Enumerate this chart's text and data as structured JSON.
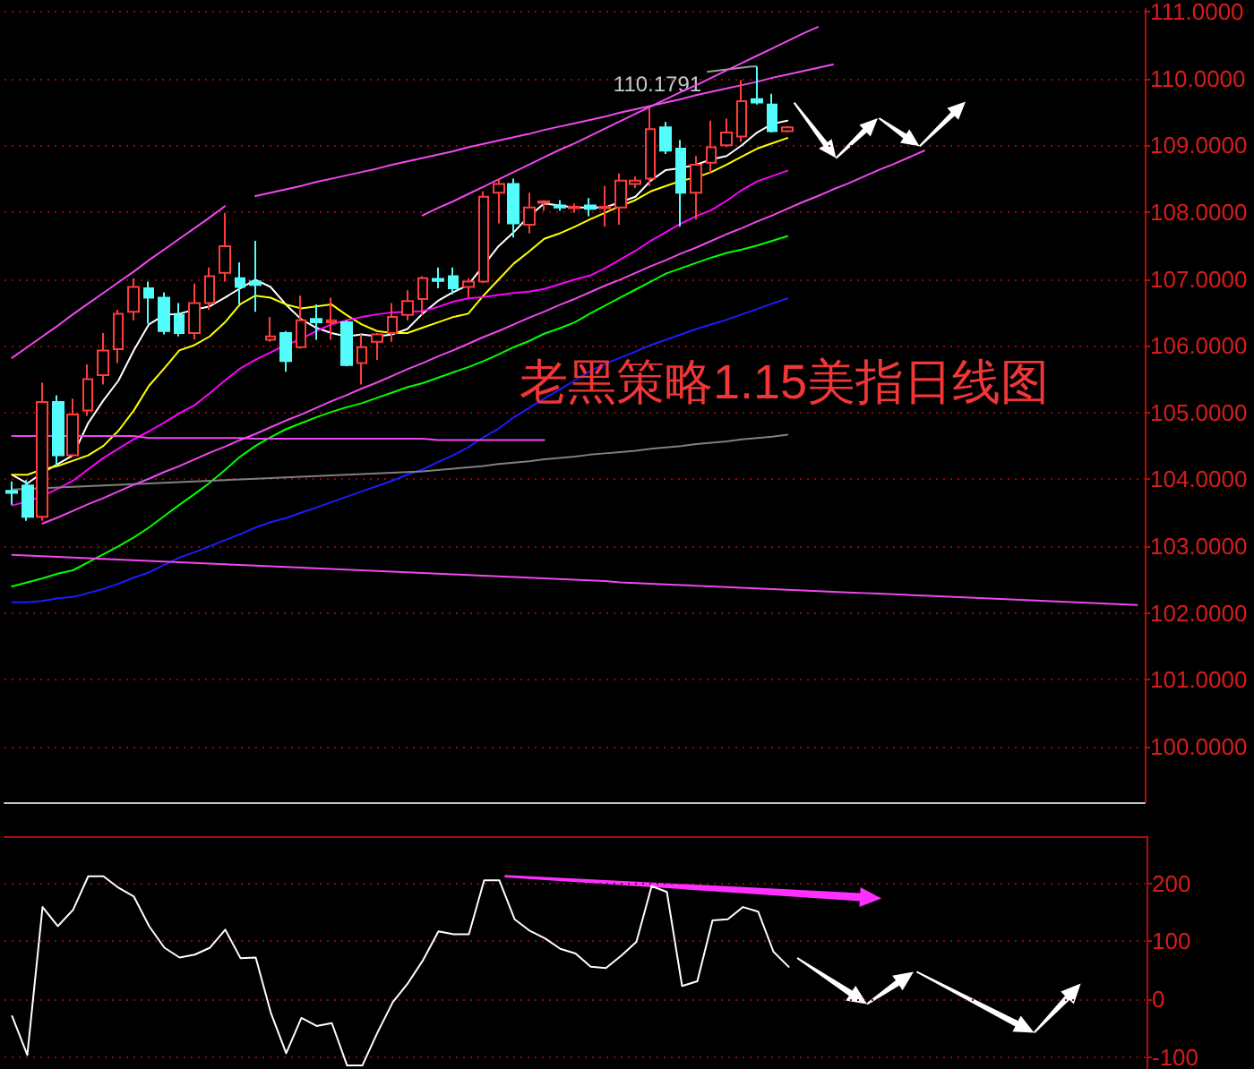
{
  "chart_data": [
    {
      "type": "candlestick",
      "title": "老黑策略1.15美指日线图",
      "categories": [
        null,
        null,
        null,
        null,
        null,
        null,
        null,
        null,
        null,
        null,
        null,
        null,
        null,
        null,
        null,
        null,
        null,
        null,
        null,
        null,
        null,
        null,
        null,
        null,
        null,
        null,
        null,
        null,
        null,
        null,
        null,
        null,
        null,
        null,
        null,
        null,
        null,
        null,
        null,
        null,
        null,
        null,
        null,
        null,
        null,
        null,
        null,
        null,
        null,
        null,
        null,
        null,
        null,
        null,
        null,
        null,
        null,
        null,
        null,
        null,
        null,
        null,
        null,
        null,
        null,
        null,
        null,
        null,
        null,
        null,
        null,
        null,
        null,
        null,
        null
      ],
      "ohlc": [
        [
          103.83,
          103.97,
          103.62,
          103.8
        ],
        [
          103.91,
          103.99,
          103.38,
          103.44
        ],
        [
          103.44,
          105.45,
          103.38,
          105.16
        ],
        [
          105.16,
          105.26,
          104.2,
          104.36
        ],
        [
          104.36,
          105.21,
          104.34,
          104.97
        ],
        [
          105.03,
          105.72,
          104.95,
          105.5
        ],
        [
          105.56,
          106.19,
          105.42,
          105.93
        ],
        [
          105.95,
          106.54,
          105.74,
          106.48
        ],
        [
          106.51,
          107.01,
          106.38,
          106.88
        ],
        [
          106.86,
          106.96,
          106.33,
          106.72
        ],
        [
          106.72,
          106.8,
          106.17,
          106.22
        ],
        [
          106.46,
          106.64,
          106.14,
          106.19
        ],
        [
          106.19,
          106.93,
          106.09,
          106.64
        ],
        [
          106.64,
          107.17,
          106.54,
          107.04
        ],
        [
          107.09,
          107.99,
          106.96,
          107.49
        ],
        [
          107.01,
          107.25,
          106.62,
          106.88
        ],
        [
          106.96,
          107.57,
          106.51,
          106.91
        ],
        [
          106.09,
          106.43,
          106.06,
          106.14
        ],
        [
          106.19,
          106.22,
          105.61,
          105.77
        ],
        [
          105.98,
          106.75,
          105.96,
          106.38
        ],
        [
          106.4,
          106.62,
          106.09,
          106.35
        ],
        [
          106.35,
          106.72,
          106.09,
          106.38
        ],
        [
          106.35,
          106.38,
          105.69,
          105.71
        ],
        [
          105.74,
          106.17,
          105.42,
          105.98
        ],
        [
          106.06,
          106.19,
          105.79,
          106.17
        ],
        [
          106.19,
          106.64,
          106.06,
          106.43
        ],
        [
          106.46,
          106.83,
          106.38,
          106.67
        ],
        [
          106.7,
          107.04,
          106.46,
          107.01
        ],
        [
          107.0,
          107.17,
          106.86,
          106.97
        ],
        [
          107.04,
          107.17,
          106.77,
          106.86
        ],
        [
          106.88,
          107.01,
          106.72,
          106.96
        ],
        [
          106.96,
          108.31,
          106.94,
          108.23
        ],
        [
          108.29,
          108.5,
          107.83,
          108.42
        ],
        [
          108.42,
          108.5,
          107.62,
          107.83
        ],
        [
          107.81,
          108.29,
          107.68,
          108.07
        ],
        [
          108.14,
          108.18,
          108.02,
          108.16
        ],
        [
          108.1,
          108.18,
          108.02,
          108.07
        ],
        [
          108.06,
          108.13,
          107.99,
          108.08
        ],
        [
          108.1,
          108.21,
          107.94,
          108.05
        ],
        [
          108.06,
          108.39,
          107.78,
          108.08
        ],
        [
          108.07,
          108.58,
          107.81,
          108.47
        ],
        [
          108.42,
          108.53,
          108.36,
          108.47
        ],
        [
          108.5,
          109.56,
          108.39,
          109.24
        ],
        [
          109.27,
          109.35,
          108.87,
          108.92
        ],
        [
          108.95,
          109.08,
          107.78,
          108.29
        ],
        [
          108.29,
          108.84,
          107.89,
          108.71
        ],
        [
          108.74,
          109.37,
          108.58,
          108.97
        ],
        [
          109.0,
          109.4,
          108.97,
          109.19
        ],
        [
          109.13,
          109.98,
          109.05,
          109.66
        ],
        [
          109.69,
          110.1791,
          109.61,
          109.64
        ],
        [
          109.61,
          109.77,
          109.19,
          109.21
        ],
        [
          109.21,
          109.29,
          109.19,
          109.27
        ],
        null,
        null,
        null,
        null,
        null,
        null,
        null,
        null,
        null,
        null,
        null,
        null,
        null,
        null,
        null,
        null,
        null,
        null,
        null,
        null,
        null,
        null,
        null
      ],
      "colors": [
        "#54fcfc",
        "#54fcfc",
        "#ff3c3c",
        "#54fcfc",
        "#ff3c3c",
        "#ff3c3c",
        "#ff3c3c",
        "#ff3c3c",
        "#ff3c3c",
        "#54fcfc",
        "#54fcfc",
        "#54fcfc",
        "#ff3c3c",
        "#ff3c3c",
        "#ff3c3c",
        "#54fcfc",
        "#54fcfc",
        "#ff3c3c",
        "#54fcfc",
        "#ff3c3c",
        "#54fcfc",
        "#ff3c3c",
        "#54fcfc",
        "#ff3c3c",
        "#ff3c3c",
        "#ff3c3c",
        "#ff3c3c",
        "#ff3c3c",
        "#54fcfc",
        "#54fcfc",
        "#ff3c3c",
        "#ff3c3c",
        "#ff3c3c",
        "#54fcfc",
        "#ff3c3c",
        "#ff3c3c",
        "#54fcfc",
        "#ff3c3c",
        "#54fcfc",
        "#ff3c3c",
        "#ff3c3c",
        "#ff3c3c",
        "#ff3c3c",
        "#54fcfc",
        "#54fcfc",
        "#ff3c3c",
        "#ff3c3c",
        "#ff3c3c",
        "#ff3c3c",
        "#54fcfc",
        "#54fcfc",
        "#ff3c3c",
        null,
        null,
        null,
        null,
        null,
        null,
        null,
        null,
        null,
        null,
        null,
        null,
        null,
        null,
        null,
        null,
        null,
        null,
        null,
        null,
        null,
        null,
        null
      ],
      "series": [
        {
          "type": "line",
          "color": "#ffffff",
          "values": [
            104.07,
            103.94,
            104.1,
            104.23,
            104.36,
            104.84,
            105.18,
            105.48,
            105.93,
            106.32,
            106.46,
            106.48,
            106.54,
            106.59,
            106.72,
            106.86,
            106.99,
            106.88,
            106.62,
            106.4,
            106.27,
            106.19,
            106.14,
            106.17,
            106.14,
            106.17,
            106.25,
            106.48,
            106.67,
            106.8,
            106.91,
            107.2,
            107.49,
            107.7,
            107.94,
            108.13,
            108.1,
            108.07,
            108.07,
            108.07,
            108.15,
            108.23,
            108.47,
            108.63,
            108.66,
            108.71,
            108.79,
            108.84,
            109.0,
            109.19,
            109.32,
            109.37,
            null,
            null,
            null,
            null,
            null,
            null,
            null,
            null,
            null,
            null,
            null,
            null,
            null,
            null,
            null,
            null,
            null,
            null,
            null,
            null,
            null,
            null,
            null
          ]
        },
        {
          "type": "line",
          "color": "#ffff00",
          "values": [
            104.07,
            104.07,
            104.15,
            104.2,
            104.28,
            104.36,
            104.5,
            104.73,
            105.03,
            105.4,
            105.66,
            105.93,
            106.01,
            106.14,
            106.35,
            106.62,
            106.75,
            106.72,
            106.62,
            106.56,
            106.59,
            106.62,
            106.46,
            106.32,
            106.22,
            106.19,
            106.19,
            106.27,
            106.35,
            106.43,
            106.48,
            106.75,
            106.99,
            107.23,
            107.41,
            107.6,
            107.68,
            107.78,
            107.89,
            107.99,
            108.09,
            108.18,
            108.31,
            108.39,
            108.47,
            108.52,
            108.6,
            108.71,
            108.83,
            108.95,
            109.03,
            109.11,
            null,
            null,
            null,
            null,
            null,
            null,
            null,
            null,
            null,
            null,
            null,
            null,
            null,
            null,
            null,
            null,
            null,
            null,
            null,
            null,
            null,
            null,
            null
          ]
        },
        {
          "type": "line",
          "color": "#ff00ff",
          "values": [
            103.61,
            103.67,
            103.75,
            103.86,
            103.98,
            104.15,
            104.32,
            104.46,
            104.6,
            104.72,
            104.85,
            104.99,
            105.11,
            105.29,
            105.48,
            105.66,
            105.79,
            105.9,
            106.01,
            106.1,
            106.22,
            106.32,
            106.38,
            106.43,
            106.47,
            106.5,
            106.51,
            106.52,
            106.58,
            106.66,
            106.71,
            106.73,
            106.76,
            106.79,
            106.81,
            106.85,
            106.92,
            106.99,
            107.05,
            107.16,
            107.29,
            107.42,
            107.57,
            107.7,
            107.83,
            107.94,
            108.03,
            108.17,
            108.33,
            108.46,
            108.54,
            108.62,
            null,
            null,
            null,
            null,
            null,
            null,
            null,
            null,
            null,
            null,
            null,
            null,
            null,
            null,
            null,
            null,
            null,
            null,
            null,
            null,
            null,
            null,
            null
          ]
        },
        {
          "type": "line",
          "color": "#00ff00",
          "values": [
            102.4,
            102.46,
            102.52,
            102.59,
            102.64,
            102.76,
            102.88,
            103.0,
            103.13,
            103.28,
            103.45,
            103.62,
            103.78,
            103.95,
            104.14,
            104.34,
            104.5,
            104.63,
            104.75,
            104.84,
            104.93,
            105.01,
            105.08,
            105.14,
            105.22,
            105.3,
            105.38,
            105.44,
            105.52,
            105.6,
            105.68,
            105.77,
            105.87,
            105.98,
            106.07,
            106.18,
            106.26,
            106.35,
            106.48,
            106.6,
            106.72,
            106.84,
            106.96,
            107.08,
            107.16,
            107.24,
            107.32,
            107.39,
            107.44,
            107.5,
            107.57,
            107.64,
            null,
            null,
            null,
            null,
            null,
            null,
            null,
            null,
            null,
            null,
            null,
            null,
            null,
            null,
            null,
            null,
            null,
            null,
            null,
            null,
            null,
            null,
            null
          ]
        },
        {
          "type": "line",
          "color": "#1c1cff",
          "values": [
            102.16,
            102.16,
            102.18,
            102.22,
            102.24,
            102.3,
            102.36,
            102.44,
            102.53,
            102.61,
            102.72,
            102.83,
            102.91,
            103.0,
            103.09,
            103.18,
            103.28,
            103.36,
            103.42,
            103.5,
            103.58,
            103.66,
            103.74,
            103.82,
            103.9,
            103.98,
            104.07,
            104.15,
            104.26,
            104.36,
            104.48,
            104.63,
            104.76,
            104.93,
            105.07,
            105.21,
            105.34,
            105.48,
            105.62,
            105.73,
            105.82,
            105.91,
            106.01,
            106.09,
            106.17,
            106.25,
            106.32,
            106.39,
            106.47,
            106.55,
            106.63,
            106.71,
            null,
            null,
            null,
            null,
            null,
            null,
            null,
            null,
            null,
            null,
            null,
            null,
            null,
            null,
            null,
            null,
            null,
            null,
            null,
            null,
            null,
            null,
            null
          ]
        },
        {
          "type": "line",
          "color": "#808080",
          "values": [
            103.85,
            103.86,
            103.87,
            103.88,
            103.89,
            103.9,
            103.91,
            103.92,
            103.93,
            103.94,
            103.95,
            103.96,
            103.97,
            103.98,
            103.99,
            104.0,
            104.01,
            104.02,
            104.03,
            104.04,
            104.05,
            104.06,
            104.07,
            104.08,
            104.09,
            104.1,
            104.11,
            104.12,
            104.14,
            104.16,
            104.18,
            104.2,
            104.23,
            104.25,
            104.27,
            104.3,
            104.32,
            104.34,
            104.37,
            104.39,
            104.41,
            104.43,
            104.46,
            104.48,
            104.5,
            104.53,
            104.55,
            104.57,
            104.6,
            104.62,
            104.64,
            104.67,
            null,
            null,
            null,
            null,
            null,
            null,
            null,
            null,
            null,
            null,
            null,
            null,
            null,
            null,
            null,
            null,
            null,
            null,
            null,
            null,
            null,
            null,
            null
          ]
        },
        {
          "type": "line",
          "color": "#f048f0",
          "values": [
            105.82,
            105.98,
            106.14,
            106.3,
            106.47,
            106.63,
            106.79,
            106.95,
            107.11,
            107.28,
            107.44,
            107.6,
            107.76,
            107.92,
            108.09,
            null,
            null,
            null,
            null,
            null,
            null,
            null,
            null,
            null,
            null,
            null,
            null,
            null,
            null,
            null,
            null,
            null,
            null,
            null,
            null,
            null,
            null,
            null,
            null,
            null,
            null,
            null,
            null,
            null,
            null,
            null,
            null,
            null,
            null,
            null,
            null,
            null,
            null,
            null,
            null,
            null,
            null,
            null,
            null,
            null,
            null,
            null,
            null,
            null,
            null,
            null,
            null,
            null,
            null,
            null,
            null,
            null,
            null,
            null,
            null
          ]
        },
        {
          "type": "line",
          "color": "#f048f0",
          "values": [
            null,
            null,
            null,
            null,
            null,
            null,
            null,
            null,
            null,
            null,
            null,
            null,
            null,
            null,
            null,
            null,
            108.24,
            108.29,
            108.34,
            108.39,
            108.45,
            108.5,
            108.55,
            108.6,
            108.65,
            108.71,
            108.76,
            108.81,
            108.86,
            108.91,
            108.97,
            109.02,
            109.07,
            109.12,
            109.17,
            109.23,
            109.28,
            109.33,
            109.38,
            109.43,
            109.49,
            109.54,
            109.59,
            109.64,
            109.69,
            109.75,
            109.8,
            109.85,
            109.9,
            109.95,
            110.01,
            110.06,
            110.11,
            110.16,
            110.21,
            null,
            null,
            null,
            null,
            null,
            null,
            null,
            null,
            null,
            null,
            null,
            null,
            null,
            null,
            null,
            null,
            null,
            null,
            null,
            null
          ]
        },
        {
          "type": "line",
          "color": "#f048f0",
          "values": [
            null,
            null,
            null,
            null,
            null,
            null,
            null,
            null,
            null,
            null,
            null,
            null,
            null,
            null,
            null,
            null,
            null,
            null,
            null,
            null,
            null,
            null,
            null,
            null,
            null,
            null,
            null,
            107.95,
            108.06,
            108.16,
            108.27,
            108.38,
            108.49,
            108.6,
            108.71,
            108.82,
            108.93,
            109.03,
            109.14,
            109.25,
            109.36,
            109.47,
            109.58,
            109.69,
            109.8,
            109.9,
            110.01,
            110.12,
            110.23,
            110.34,
            110.45,
            110.56,
            110.67,
            110.77,
            null,
            null,
            null,
            null,
            null,
            null,
            null,
            null,
            null,
            null,
            null,
            null,
            null,
            null,
            null,
            null,
            null,
            null,
            null,
            null,
            null
          ]
        },
        {
          "type": "line",
          "color": "#f048f0",
          "values": [
            null,
            null,
            103.34,
            103.43,
            103.53,
            103.63,
            103.72,
            103.82,
            103.92,
            104.01,
            104.11,
            104.2,
            104.3,
            104.4,
            104.49,
            104.59,
            104.68,
            104.78,
            104.88,
            104.97,
            105.07,
            105.17,
            105.26,
            105.36,
            105.45,
            105.55,
            105.65,
            105.74,
            105.84,
            105.93,
            106.03,
            106.13,
            106.22,
            106.32,
            106.42,
            106.51,
            106.61,
            106.7,
            106.8,
            106.9,
            106.99,
            107.09,
            107.19,
            107.28,
            107.38,
            107.47,
            107.57,
            107.67,
            107.76,
            107.86,
            107.95,
            108.05,
            108.15,
            108.24,
            108.34,
            108.43,
            108.53,
            108.63,
            108.72,
            108.82,
            108.92,
            null,
            null,
            null,
            null,
            null,
            null,
            null,
            null,
            null,
            null,
            null,
            null,
            null,
            null
          ]
        },
        {
          "type": "line",
          "color": "#f048f0",
          "values": [
            104.65,
            104.65,
            104.65,
            104.65,
            104.65,
            104.65,
            104.65,
            104.65,
            104.65,
            104.62,
            104.62,
            104.62,
            104.62,
            104.62,
            104.62,
            104.62,
            104.61,
            104.61,
            104.61,
            104.61,
            104.61,
            104.61,
            104.61,
            104.61,
            104.61,
            104.61,
            104.61,
            104.61,
            104.59,
            104.59,
            104.59,
            104.59,
            104.59,
            104.59,
            104.59,
            104.59,
            null,
            null,
            null,
            null,
            null,
            null,
            null,
            null,
            null,
            null,
            null,
            null,
            null,
            null,
            null,
            null,
            null,
            null,
            null,
            null,
            null,
            null,
            null,
            null,
            null,
            null,
            null,
            null,
            null,
            null,
            null,
            null,
            null,
            null,
            null,
            null,
            null,
            null,
            null
          ]
        },
        {
          "type": "line",
          "color": "#f048f0",
          "values": [
            102.87,
            102.86,
            102.85,
            102.84,
            102.83,
            102.82,
            102.81,
            102.8,
            102.79,
            102.78,
            102.77,
            102.76,
            102.75,
            102.74,
            102.73,
            102.72,
            102.71,
            102.7,
            102.69,
            102.68,
            102.67,
            102.66,
            102.65,
            102.64,
            102.63,
            102.62,
            102.61,
            102.6,
            102.59,
            102.58,
            102.57,
            102.56,
            102.55,
            102.54,
            102.53,
            102.52,
            102.51,
            102.5,
            102.49,
            102.48,
            102.46,
            102.45,
            102.44,
            102.43,
            102.42,
            102.41,
            102.4,
            102.39,
            102.38,
            102.37,
            102.36,
            102.35,
            102.34,
            102.33,
            102.32,
            102.31,
            102.3,
            102.29,
            102.28,
            102.27,
            102.26,
            102.25,
            102.24,
            102.23,
            102.22,
            102.21,
            102.2,
            102.19,
            102.18,
            102.17,
            102.16,
            102.15,
            102.14,
            102.13,
            102.12
          ]
        }
      ],
      "ylim": [
        99.17,
        111.04
      ],
      "yticks": [
        {
          "value": 100,
          "label": "100.0000"
        },
        {
          "value": 101,
          "label": "101.0000"
        },
        {
          "value": 102,
          "label": "102.0000"
        },
        {
          "value": 103,
          "label": "103.0000"
        },
        {
          "value": 104,
          "label": "104.0000"
        },
        {
          "value": 105,
          "label": "105.0000"
        },
        {
          "value": 106,
          "label": "106.0000"
        },
        {
          "value": 107,
          "label": "107.0000"
        },
        {
          "value": 108,
          "label": "108.0000"
        },
        {
          "value": 109,
          "label": "109.0000"
        },
        {
          "value": 110,
          "label": "110.0000"
        },
        {
          "value": 111,
          "label": "111.0000"
        }
      ],
      "grid": "y",
      "tick_labels": "y",
      "annotations": [
        "110.1791"
      ]
    },
    {
      "type": "line",
      "categories": [
        null,
        null,
        null,
        null,
        null,
        null,
        null,
        null,
        null,
        null,
        null,
        null,
        null,
        null,
        null,
        null,
        null,
        null,
        null,
        null,
        null,
        null,
        null,
        null,
        null,
        null,
        null,
        null,
        null,
        null,
        null,
        null,
        null,
        null,
        null,
        null,
        null,
        null,
        null,
        null,
        null,
        null,
        null,
        null,
        null,
        null,
        null,
        null,
        null,
        null,
        null,
        null,
        null,
        null,
        null,
        null,
        null,
        null,
        null,
        null,
        null,
        null,
        null,
        null,
        null,
        null,
        null,
        null,
        null,
        null,
        null,
        null,
        null,
        null,
        null
      ],
      "values": [
        -29,
        -96,
        159,
        126,
        154,
        212,
        212,
        192,
        177,
        126,
        89,
        72,
        77,
        89,
        120,
        71,
        72,
        -24,
        -93,
        -32,
        -46,
        -41,
        -114,
        -114,
        -57,
        -5,
        28,
        68,
        117,
        112,
        112,
        205,
        205,
        138,
        118,
        105,
        87,
        79,
        56,
        54,
        75,
        99,
        195,
        185,
        23,
        31,
        136,
        138,
        159,
        151,
        82,
        56,
        null,
        null,
        null,
        null,
        null,
        null,
        null,
        null,
        null,
        null,
        null,
        null,
        null,
        null,
        null,
        null,
        null,
        null,
        null,
        null,
        null,
        null,
        null
      ],
      "color": "#ffffff",
      "ylim": [
        -119,
        281
      ],
      "yticks": [
        -100,
        0,
        100,
        200
      ],
      "grid": "y",
      "tick_labels": "y"
    }
  ]
}
